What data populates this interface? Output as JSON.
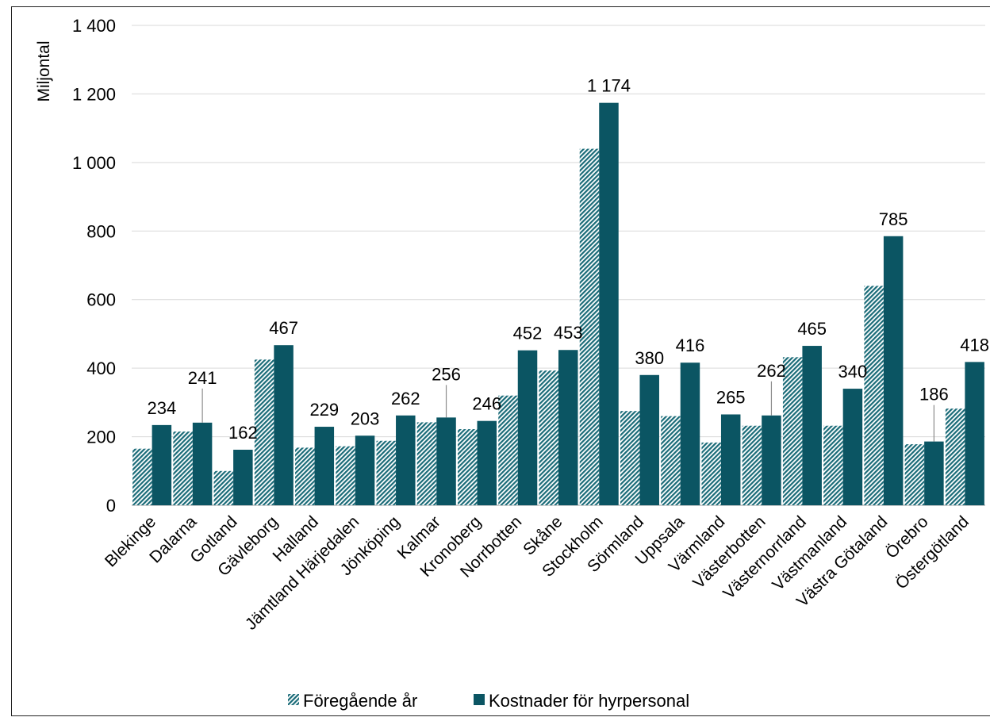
{
  "chart_data": {
    "type": "bar",
    "ylabel": "Miljontal",
    "ylim": [
      0,
      1400
    ],
    "yticks": [
      0,
      200,
      400,
      600,
      800,
      1000,
      1200,
      1400
    ],
    "ytick_labels": [
      "0",
      "200",
      "400",
      "600",
      "800",
      "1 000",
      "1 200",
      "1 400"
    ],
    "grid": true,
    "legend_position": "bottom",
    "categories": [
      "Blekinge",
      "Dalarna",
      "Gotland",
      "Gävleborg",
      "Halland",
      "Jämtland Härjedalen",
      "Jönköping",
      "Kalmar",
      "Kronoberg",
      "Norrbotten",
      "Skåne",
      "Stockholm",
      "Sörmland",
      "Uppsala",
      "Värmland",
      "Västerbotten",
      "Västernorrland",
      "Västmanland",
      "Västra Götaland",
      "Örebro",
      "Östergötland"
    ],
    "series": [
      {
        "name": "Föregående år",
        "pattern": "hatched",
        "color": "#1a6b78",
        "values": [
          165,
          215,
          100,
          425,
          168,
          172,
          188,
          242,
          222,
          320,
          393,
          1040,
          275,
          260,
          183,
          232,
          432,
          232,
          640,
          178,
          282
        ]
      },
      {
        "name": "Kostnader för hyrpersonal",
        "pattern": "solid",
        "color": "#0b5563",
        "values": [
          234,
          241,
          162,
          467,
          229,
          203,
          262,
          256,
          246,
          452,
          453,
          1174,
          380,
          416,
          265,
          262,
          465,
          340,
          785,
          186,
          418
        ],
        "labels": [
          "234",
          "241",
          "162",
          "467",
          "229",
          "203",
          "262",
          "256",
          "246",
          "452",
          "453",
          "1 174",
          "380",
          "416",
          "265",
          "262",
          "465",
          "340",
          "785",
          "186",
          "418"
        ]
      }
    ]
  }
}
